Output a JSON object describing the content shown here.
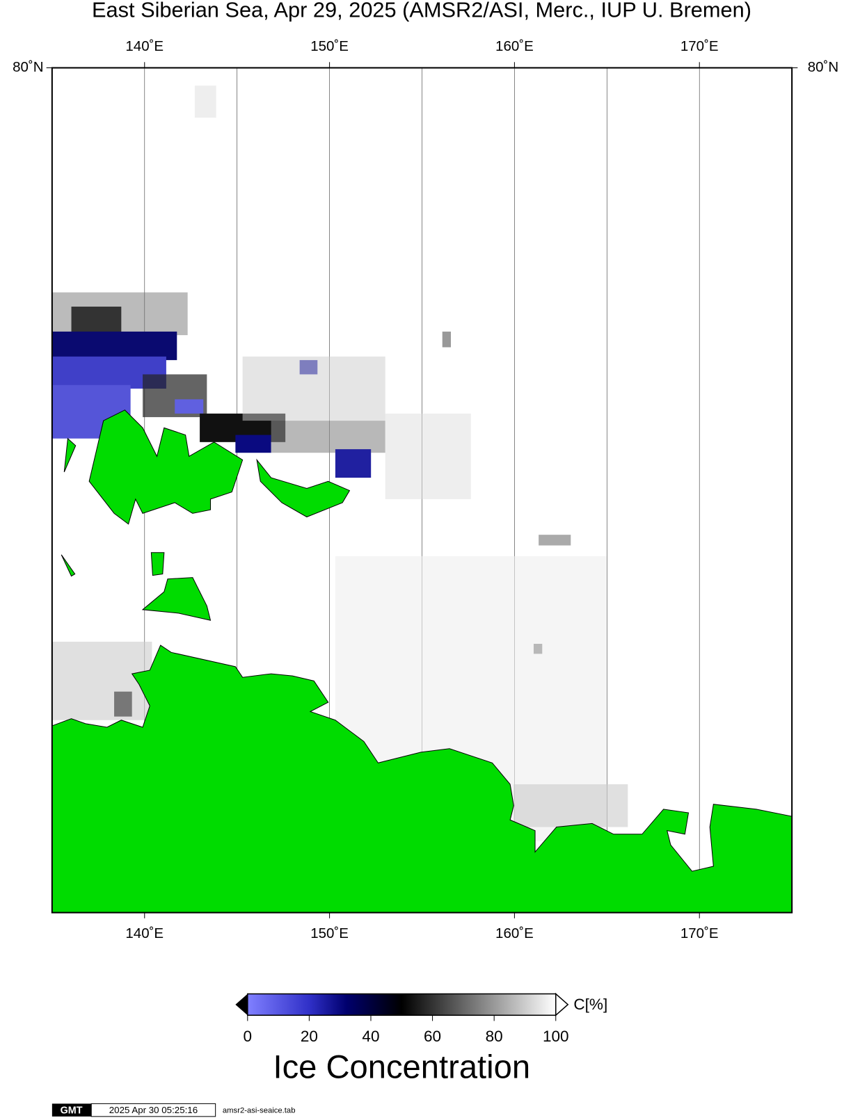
{
  "title": "East Siberian Sea, Apr 29, 2025 (AMSR2/ASI, Merc., IUP U. Bremen)",
  "map": {
    "xlim": [
      135,
      175
    ],
    "grid_lons": [
      140,
      145,
      150,
      155,
      160,
      165,
      170
    ],
    "lon_ticks": [
      {
        "value": 140,
        "label": "140˚E"
      },
      {
        "value": 150,
        "label": "150˚E"
      },
      {
        "value": 160,
        "label": "160˚E"
      },
      {
        "value": 170,
        "label": "170˚E"
      }
    ],
    "lat_ticks": [
      {
        "value": 80,
        "label": "80˚N"
      }
    ]
  },
  "colorbar": {
    "xlim": [
      0,
      100
    ],
    "ticks": [
      0,
      20,
      40,
      60,
      80,
      100
    ],
    "unit": "C[%]",
    "label": "Ice Concentration"
  },
  "footer": {
    "logo": "GMT",
    "timestamp": "2025 Apr 30 05:25:16",
    "source": "amsr2-asi-seaice.tab"
  }
}
